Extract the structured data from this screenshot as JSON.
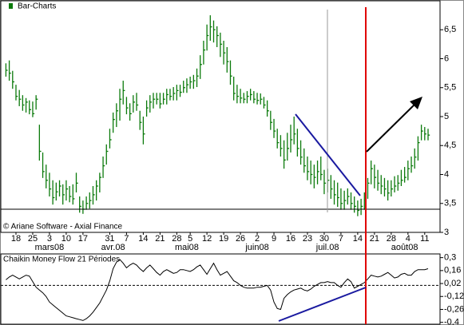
{
  "chart_data": [
    {
      "type": "ohlc",
      "legend": "top-left",
      "annotation": "© Ariane Software - Axial Finance",
      "series": [
        {
          "name": "Bar-Charts",
          "color": "#0b7a0b",
          "high": [
            5.92,
            5.97,
            5.79,
            5.55,
            5.46,
            5.37,
            5.32,
            5.28,
            5.26,
            5.37,
            4.86,
            4.38,
            4.17,
            4.03,
            3.9,
            3.86,
            3.9,
            3.83,
            3.9,
            3.8,
            3.83,
            4.03,
            3.62,
            3.55,
            3.62,
            3.69,
            3.8,
            3.9,
            4.03,
            4.31,
            4.52,
            4.79,
            5.07,
            5.23,
            5.48,
            5.62,
            5.34,
            5.23,
            5.37,
            5.41,
            5.1,
            5.0,
            5.28,
            5.37,
            5.41,
            5.41,
            5.41,
            5.41,
            5.48,
            5.48,
            5.51,
            5.55,
            5.55,
            5.62,
            5.66,
            5.69,
            5.72,
            5.83,
            6.06,
            6.31,
            6.59,
            6.75,
            6.66,
            6.56,
            6.45,
            6.31,
            6.2,
            5.97,
            5.69,
            5.55,
            5.48,
            5.41,
            5.44,
            5.48,
            5.44,
            5.41,
            5.4,
            5.34,
            5.28,
            5.1,
            4.96,
            4.79,
            4.68,
            4.59,
            4.72,
            4.86,
            5.0,
            4.79,
            4.59,
            4.45,
            4.31,
            4.24,
            4.17,
            4.24,
            4.31,
            4.08,
            4.1,
            3.99,
            3.9,
            3.86,
            3.76,
            3.72,
            3.76,
            3.69,
            3.62,
            3.55,
            3.58,
            3.69,
            3.94,
            4.24,
            4.17,
            4.08,
            3.99,
            3.94,
            3.9,
            3.9,
            3.97,
            3.99,
            4.08,
            4.13,
            4.24,
            4.31,
            4.45,
            4.66,
            4.86,
            4.82,
            4.79
          ],
          "low": [
            5.69,
            5.62,
            5.48,
            5.28,
            5.18,
            5.1,
            5.07,
            5.04,
            4.99,
            5.12,
            4.24,
            3.94,
            3.76,
            3.62,
            3.48,
            3.55,
            3.62,
            3.48,
            3.55,
            3.52,
            3.48,
            3.69,
            3.34,
            3.32,
            3.39,
            3.41,
            3.48,
            3.55,
            3.69,
            3.94,
            4.17,
            4.45,
            4.72,
            4.82,
            4.93,
            5.21,
            5.04,
            4.93,
            5.07,
            5.1,
            4.77,
            4.52,
            5.0,
            5.07,
            5.14,
            5.21,
            5.14,
            5.21,
            5.21,
            5.28,
            5.28,
            5.28,
            5.34,
            5.41,
            5.41,
            5.48,
            5.48,
            5.51,
            5.65,
            5.9,
            6.14,
            6.31,
            6.28,
            6.2,
            6.03,
            5.9,
            5.76,
            5.55,
            5.28,
            5.23,
            5.23,
            5.23,
            5.23,
            5.28,
            5.23,
            5.21,
            5.21,
            5.14,
            5.0,
            4.77,
            4.63,
            4.45,
            4.31,
            4.1,
            4.24,
            4.38,
            4.52,
            4.31,
            4.17,
            4.03,
            3.9,
            3.83,
            3.76,
            3.83,
            3.9,
            3.66,
            3.69,
            3.58,
            3.48,
            3.44,
            3.39,
            3.39,
            3.48,
            3.39,
            3.34,
            3.28,
            3.3,
            3.39,
            3.58,
            3.83,
            3.76,
            3.72,
            3.66,
            3.62,
            3.55,
            3.62,
            3.69,
            3.72,
            3.8,
            3.86,
            3.9,
            4.03,
            4.1,
            4.24,
            4.59,
            4.59,
            4.59
          ],
          "close": [
            5.8,
            5.75,
            5.6,
            5.35,
            5.3,
            5.2,
            5.25,
            5.12,
            5.05,
            5.3,
            4.4,
            4.05,
            3.9,
            3.75,
            3.6,
            3.7,
            3.8,
            3.65,
            3.75,
            3.62,
            3.58,
            3.85,
            3.45,
            3.4,
            3.5,
            3.55,
            3.65,
            3.8,
            3.95,
            4.15,
            4.4,
            4.6,
            4.95,
            5.1,
            5.3,
            5.45,
            5.15,
            5.05,
            5.25,
            5.2,
            4.9,
            4.7,
            5.15,
            5.25,
            5.3,
            5.3,
            5.22,
            5.3,
            5.38,
            5.35,
            5.4,
            5.45,
            5.42,
            5.5,
            5.55,
            5.6,
            5.62,
            5.7,
            5.9,
            6.15,
            6.4,
            6.55,
            6.5,
            6.4,
            6.25,
            6.1,
            5.95,
            5.7,
            5.4,
            5.35,
            5.32,
            5.3,
            5.35,
            5.38,
            5.3,
            5.28,
            5.3,
            5.2,
            5.1,
            4.9,
            4.75,
            4.55,
            4.45,
            4.25,
            4.45,
            4.6,
            4.7,
            4.45,
            4.3,
            4.15,
            4.05,
            4.0,
            3.95,
            4.05,
            4.0,
            3.85,
            3.9,
            3.75,
            3.65,
            3.6,
            3.5,
            3.55,
            3.62,
            3.5,
            3.45,
            3.38,
            3.45,
            3.55,
            3.85,
            4.1,
            3.95,
            3.85,
            3.8,
            3.75,
            3.68,
            3.75,
            3.8,
            3.85,
            3.9,
            3.95,
            4.1,
            4.15,
            4.3,
            4.55,
            4.75,
            4.7,
            4.68
          ]
        }
      ],
      "categories": [
        null,
        null,
        null,
        "18",
        null,
        null,
        null,
        null,
        "25",
        null,
        null,
        null,
        null,
        "3",
        null,
        null,
        null,
        null,
        "10",
        null,
        null,
        null,
        null,
        "17",
        null,
        null,
        null,
        null,
        null,
        null,
        null,
        "31",
        null,
        null,
        null,
        null,
        "7",
        null,
        null,
        null,
        null,
        "14",
        null,
        null,
        null,
        null,
        "21",
        null,
        null,
        null,
        null,
        "28",
        null,
        null,
        null,
        "5",
        null,
        null,
        null,
        null,
        "12",
        null,
        null,
        null,
        null,
        "19",
        null,
        null,
        null,
        null,
        "26",
        null,
        null,
        null,
        null,
        "2",
        null,
        null,
        null,
        null,
        "9",
        null,
        null,
        null,
        null,
        "16",
        null,
        null,
        null,
        null,
        "23",
        null,
        null,
        null,
        null,
        "30",
        null,
        null,
        null,
        null,
        "7",
        null,
        null,
        null,
        null,
        "14",
        null,
        null,
        null,
        null,
        "21",
        null,
        null,
        null,
        null,
        "28",
        null,
        null,
        null,
        null,
        "4",
        null,
        null,
        null,
        null,
        "11",
        null
      ],
      "month_categories": [
        null,
        null,
        null,
        null,
        null,
        null,
        null,
        null,
        null,
        null,
        null,
        null,
        null,
        "mars08",
        null,
        null,
        null,
        null,
        null,
        null,
        null,
        null,
        null,
        null,
        null,
        null,
        null,
        null,
        null,
        null,
        null,
        null,
        "avr.08",
        null,
        null,
        null,
        null,
        null,
        null,
        null,
        null,
        null,
        null,
        null,
        null,
        null,
        null,
        null,
        null,
        null,
        null,
        null,
        null,
        null,
        "mai08",
        null,
        null,
        null,
        null,
        null,
        null,
        null,
        null,
        null,
        null,
        null,
        null,
        null,
        null,
        null,
        null,
        null,
        null,
        null,
        null,
        "juin08",
        null,
        null,
        null,
        null,
        null,
        null,
        null,
        null,
        null,
        null,
        null,
        null,
        null,
        null,
        null,
        null,
        null,
        null,
        null,
        null,
        "juil.08",
        null,
        null,
        null,
        null,
        null,
        null,
        null,
        null,
        null,
        null,
        null,
        null,
        null,
        null,
        null,
        null,
        null,
        null,
        null,
        null,
        null,
        null,
        "août08",
        null,
        null,
        null,
        null,
        null,
        null,
        null
      ],
      "ylim": [
        3,
        7
      ],
      "yticks": [
        3,
        {
          "value": 3.5,
          "label": "3,5"
        },
        4,
        {
          "value": 4.5,
          "label": "4,5"
        },
        5,
        {
          "value": 5.5,
          "label": "5,5"
        },
        6,
        {
          "value": 6.5,
          "label": "6,5"
        }
      ]
    },
    {
      "type": "line",
      "title": "Chaikin Money Flow 21 Périodes",
      "color": "#000000",
      "values": [
        0.06,
        0.09,
        0.11,
        0.09,
        0.07,
        0.09,
        0.11,
        0.1,
        0.04,
        -0.02,
        -0.05,
        -0.08,
        -0.12,
        -0.18,
        -0.21,
        -0.24,
        -0.27,
        -0.3,
        -0.33,
        -0.34,
        -0.35,
        -0.36,
        -0.37,
        -0.38,
        -0.36,
        -0.33,
        -0.29,
        -0.24,
        -0.19,
        -0.12,
        -0.05,
        0.05,
        0.18,
        0.25,
        0.28,
        0.24,
        0.19,
        0.22,
        0.24,
        0.22,
        0.18,
        0.15,
        0.19,
        0.22,
        0.18,
        0.14,
        0.11,
        0.15,
        0.17,
        0.15,
        0.13,
        0.14,
        0.17,
        0.17,
        0.16,
        0.15,
        0.17,
        0.2,
        0.22,
        0.17,
        0.12,
        0.18,
        0.24,
        0.17,
        0.11,
        0.13,
        0.15,
        0.1,
        0.05,
        0.03,
        0.0,
        -0.02,
        -0.03,
        -0.03,
        -0.03,
        -0.02,
        -0.02,
        -0.01,
        0.0,
        -0.05,
        -0.18,
        -0.25,
        -0.26,
        -0.14,
        -0.1,
        -0.07,
        -0.05,
        -0.04,
        -0.03,
        -0.05,
        -0.06,
        -0.04,
        -0.01,
        0.01,
        0.03,
        0.03,
        0.04,
        0.03,
        0.03,
        0.0,
        -0.02,
        0.03,
        0.07,
        0.04,
        -0.03,
        -0.01,
        0.01,
        0.03,
        0.07,
        0.11,
        0.1,
        0.09,
        0.1,
        0.12,
        0.14,
        0.11,
        0.08,
        0.09,
        0.12,
        0.13,
        0.11,
        0.11,
        0.15,
        0.17,
        0.17,
        0.17,
        0.18
      ],
      "reference_line": 0,
      "ylim": [
        -0.42,
        0.34
      ],
      "yticks": [
        {
          "value": 0.3,
          "label": "0,3"
        },
        {
          "value": 0.16,
          "label": "0,16"
        },
        {
          "value": 0.02,
          "label": "0,02"
        },
        {
          "value": -0.12,
          "label": "-0,12"
        },
        {
          "value": -0.26,
          "label": "-0,26"
        },
        {
          "value": -0.4,
          "label": "-0,4"
        }
      ]
    }
  ]
}
